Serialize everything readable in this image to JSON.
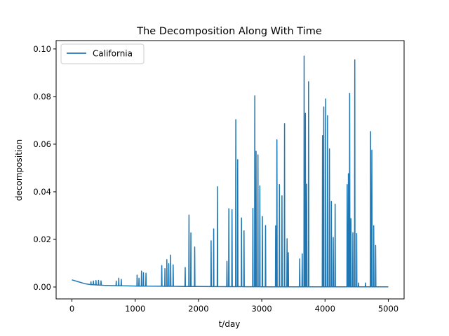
{
  "chart_data": {
    "type": "line",
    "title": "The Decomposition Along With Time",
    "xlabel": "t/day",
    "ylabel": "decomposition",
    "xlim": [
      -250,
      5250
    ],
    "ylim": [
      -0.005,
      0.1035
    ],
    "xticks": [
      0,
      1000,
      2000,
      3000,
      4000,
      5000
    ],
    "xtick_labels": [
      "0",
      "1000",
      "2000",
      "3000",
      "4000",
      "5000"
    ],
    "yticks": [
      0.0,
      0.02,
      0.04,
      0.06,
      0.08,
      0.1
    ],
    "ytick_labels": [
      "0.00",
      "0.02",
      "0.04",
      "0.06",
      "0.08",
      "0.10"
    ],
    "grid": false,
    "legend": "top-left",
    "series": [
      {
        "name": "California",
        "color": "#1f77b4",
        "baseline": [
          [
            0,
            0.003
          ],
          [
            100,
            0.0022
          ],
          [
            200,
            0.0014
          ],
          [
            300,
            0.001
          ],
          [
            500,
            0.0007
          ],
          [
            800,
            0.0005
          ],
          [
            1000,
            0.0004
          ],
          [
            1500,
            0.0003
          ],
          [
            2000,
            0.0002
          ],
          [
            3000,
            0.0001
          ],
          [
            4000,
            0.0001
          ],
          [
            5000,
            0.0001
          ]
        ],
        "peaks": [
          [
            300,
            0.0022
          ],
          [
            340,
            0.0025
          ],
          [
            380,
            0.0027
          ],
          [
            420,
            0.0028
          ],
          [
            460,
            0.0026
          ],
          [
            700,
            0.0025
          ],
          [
            740,
            0.0037
          ],
          [
            780,
            0.0032
          ],
          [
            1030,
            0.005
          ],
          [
            1060,
            0.0037
          ],
          [
            1100,
            0.0067
          ],
          [
            1130,
            0.006
          ],
          [
            1170,
            0.0058
          ],
          [
            1420,
            0.009
          ],
          [
            1470,
            0.0077
          ],
          [
            1500,
            0.0115
          ],
          [
            1530,
            0.0098
          ],
          [
            1560,
            0.0134
          ],
          [
            1600,
            0.0093
          ],
          [
            1790,
            0.0082
          ],
          [
            1850,
            0.0302
          ],
          [
            1880,
            0.0227
          ],
          [
            1940,
            0.0168
          ],
          [
            2200,
            0.0194
          ],
          [
            2240,
            0.0244
          ],
          [
            2300,
            0.0421
          ],
          [
            2450,
            0.0108
          ],
          [
            2480,
            0.0329
          ],
          [
            2530,
            0.0325
          ],
          [
            2590,
            0.0703
          ],
          [
            2620,
            0.0535
          ],
          [
            2680,
            0.029
          ],
          [
            2720,
            0.0236
          ],
          [
            2860,
            0.033
          ],
          [
            2890,
            0.0803
          ],
          [
            2910,
            0.057
          ],
          [
            2940,
            0.0555
          ],
          [
            2970,
            0.0425
          ],
          [
            3010,
            0.0296
          ],
          [
            3060,
            0.0258
          ],
          [
            3220,
            0.0257
          ],
          [
            3240,
            0.0618
          ],
          [
            3280,
            0.043
          ],
          [
            3320,
            0.0383
          ],
          [
            3360,
            0.0686
          ],
          [
            3400,
            0.0203
          ],
          [
            3420,
            0.0144
          ],
          [
            3600,
            0.0118
          ],
          [
            3640,
            0.0139
          ],
          [
            3670,
            0.097
          ],
          [
            3690,
            0.073
          ],
          [
            3710,
            0.0432
          ],
          [
            3740,
            0.0862
          ],
          [
            3960,
            0.0636
          ],
          [
            3980,
            0.0756
          ],
          [
            4010,
            0.079
          ],
          [
            4040,
            0.072
          ],
          [
            4070,
            0.058
          ],
          [
            4100,
            0.036
          ],
          [
            4130,
            0.0208
          ],
          [
            4160,
            0.0348
          ],
          [
            4350,
            0.043
          ],
          [
            4370,
            0.0476
          ],
          [
            4390,
            0.0813
          ],
          [
            4410,
            0.0287
          ],
          [
            4440,
            0.0228
          ],
          [
            4470,
            0.0954
          ],
          [
            4500,
            0.0224
          ],
          [
            4530,
            0.0017
          ],
          [
            4640,
            0.0017
          ],
          [
            4720,
            0.0653
          ],
          [
            4740,
            0.0575
          ],
          [
            4770,
            0.0257
          ],
          [
            4800,
            0.0175
          ]
        ]
      }
    ]
  }
}
